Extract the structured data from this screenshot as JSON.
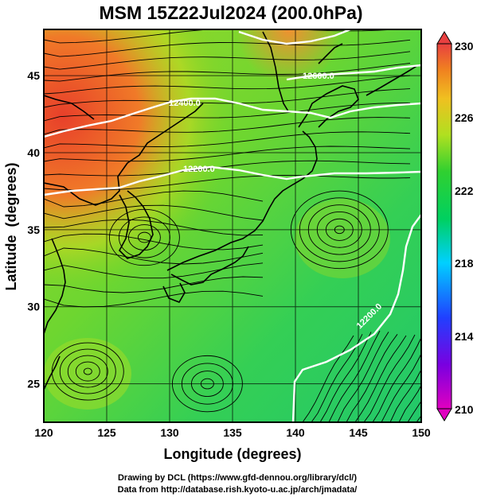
{
  "title": "MSM 15Z22Jul2024 (200.0hPa)",
  "x_axis": {
    "label": "Longitude (degrees)",
    "ticks": [
      "120",
      "125",
      "130",
      "135",
      "140",
      "145",
      "150"
    ]
  },
  "y_axis": {
    "label": "Latitude  (degrees)",
    "ticks": [
      "25",
      "30",
      "35",
      "40",
      "45"
    ]
  },
  "colorbar": {
    "ticks": [
      "210",
      "214",
      "218",
      "222",
      "226",
      "230"
    ]
  },
  "contour_labels": [
    "12600.0",
    "12400.0",
    "12200.0",
    "12200.0"
  ],
  "credits": {
    "line1": "Drawing by DCL (https://www.gfd-dennou.org/library/dcl/)",
    "line2": "Data from http://database.rish.kyoto-u.ac.jp/arch/jmadata/"
  },
  "colors": {
    "warm": "#e8502a",
    "mid": "#7ed321",
    "cool": "#1ec86a",
    "contour": "#ffffff",
    "coast": "#000000"
  }
}
